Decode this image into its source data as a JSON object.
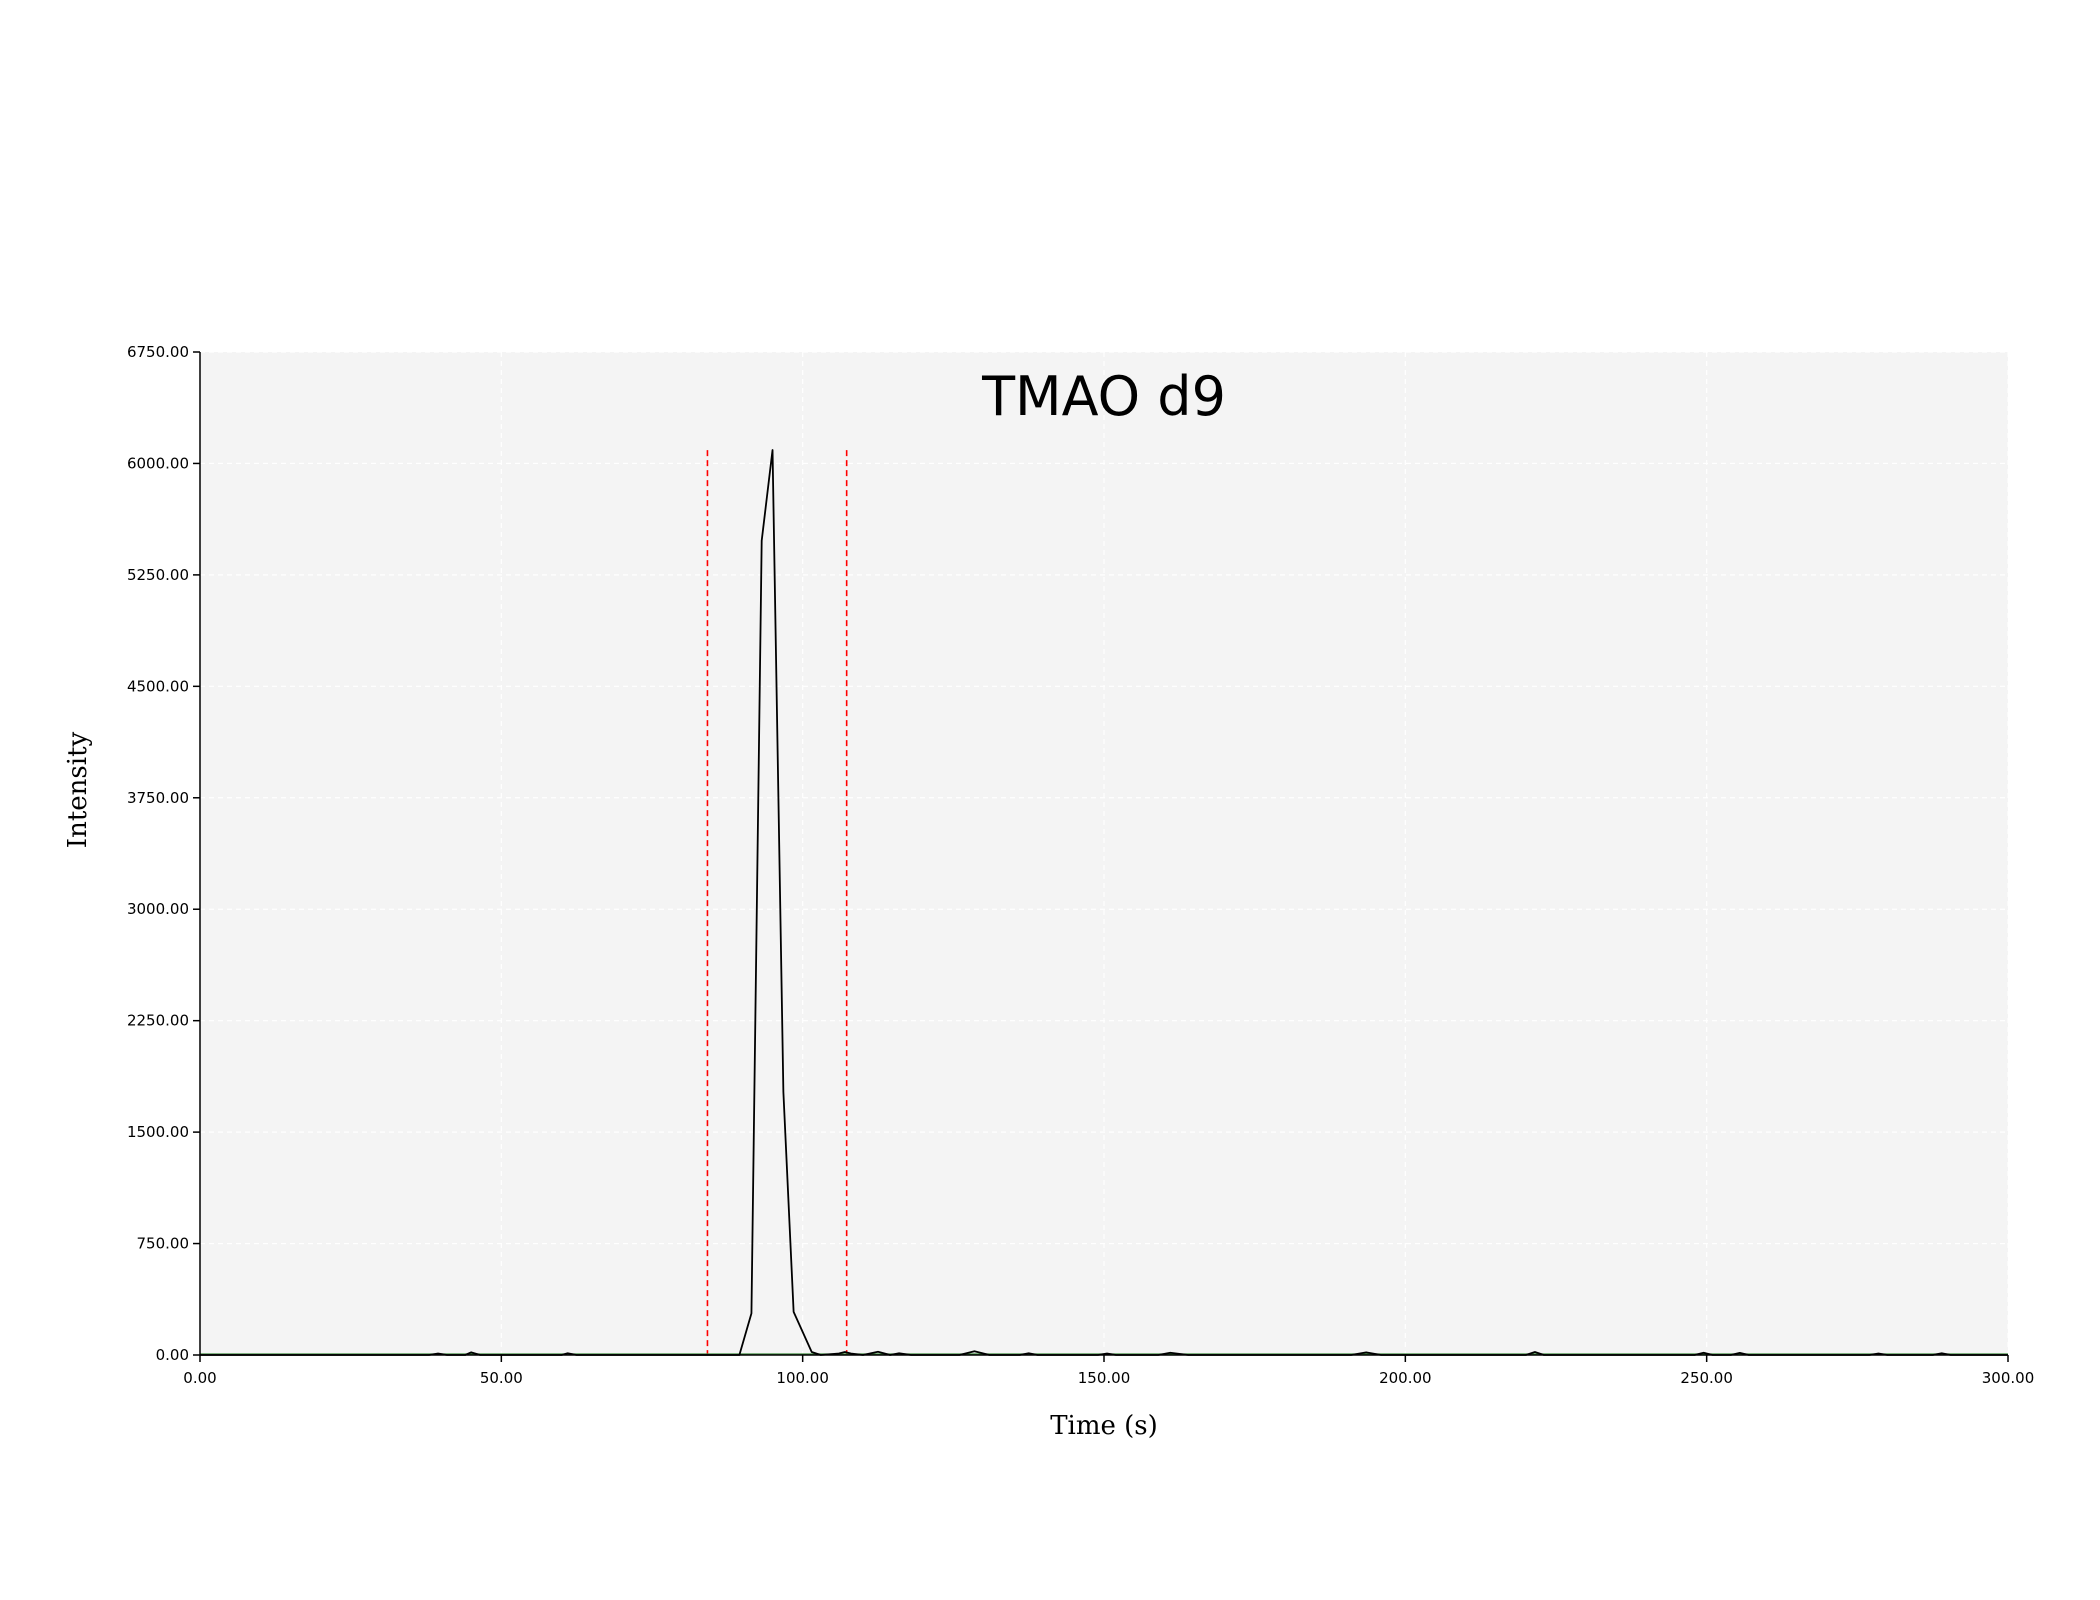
{
  "chart_data": {
    "type": "line",
    "title": "TMAO d9",
    "xlabel": "Time (s)",
    "ylabel": "Intensity",
    "xlim": [
      0,
      300
    ],
    "ylim": [
      0,
      6750
    ],
    "x_ticks": [
      "0.00",
      "50.00",
      "100.00",
      "150.00",
      "200.00",
      "250.00",
      "300.00"
    ],
    "y_ticks": [
      "0.00",
      "750.00",
      "1500.00",
      "2250.00",
      "3000.00",
      "3750.00",
      "4500.00",
      "5250.00",
      "6000.00",
      "6750.00"
    ],
    "grid": true,
    "background_color": "#f4f4f4",
    "series": [
      {
        "color": "#000000",
        "x": [
          0,
          38,
          39.5,
          41,
          44,
          45,
          46.5,
          60,
          61,
          62.5,
          85,
          89.5,
          91.5,
          93.2,
          95,
          96.8,
          98.5,
          101.5,
          103,
          106,
          107,
          108,
          110,
          112.5,
          114.5,
          116,
          118,
          120,
          126,
          128.5,
          131,
          136,
          137.5,
          139,
          149,
          150.5,
          152,
          159,
          161,
          164,
          191,
          193.5,
          196,
          220,
          221.5,
          223,
          248,
          249.5,
          251,
          254,
          255.5,
          257,
          277,
          278.5,
          280,
          287.5,
          289,
          290.5,
          300
        ],
        "y": [
          0,
          0,
          10,
          0,
          0,
          18,
          0,
          0,
          12,
          0,
          0,
          0,
          280,
          5480,
          6090,
          1770,
          290,
          20,
          0,
          10,
          20,
          10,
          0,
          22,
          0,
          12,
          0,
          0,
          0,
          25,
          0,
          0,
          12,
          0,
          0,
          10,
          0,
          0,
          15,
          0,
          0,
          18,
          0,
          0,
          20,
          0,
          0,
          15,
          0,
          0,
          14,
          0,
          0,
          10,
          0,
          0,
          12,
          0,
          0
        ]
      }
    ],
    "annotations": [
      {
        "type": "vertical-line",
        "x": 84.2,
        "y_top": 6090,
        "color": "#ff0000",
        "style": "dashed"
      },
      {
        "type": "vertical-line",
        "x": 107.3,
        "y_top": 6090,
        "color": "#ff0000",
        "style": "dashed"
      }
    ],
    "baseline_color": "#3a8a3a"
  }
}
